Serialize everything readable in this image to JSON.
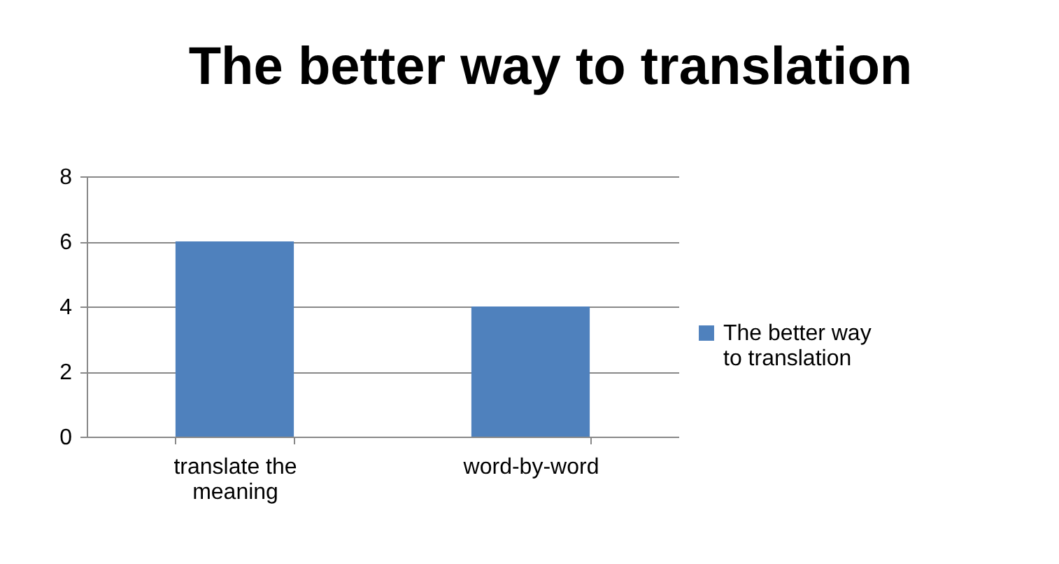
{
  "chart_data": {
    "type": "bar",
    "title": "The better way to translation",
    "categories": [
      "translate the meaning",
      "word-by-word"
    ],
    "series": [
      {
        "name": "The better way to translation",
        "color": "#4f81bd",
        "values": [
          6,
          4
        ]
      }
    ],
    "ylim": [
      0,
      8
    ],
    "yticks": [
      0,
      2,
      4,
      6,
      8
    ],
    "grid": "y",
    "legend": "right"
  }
}
